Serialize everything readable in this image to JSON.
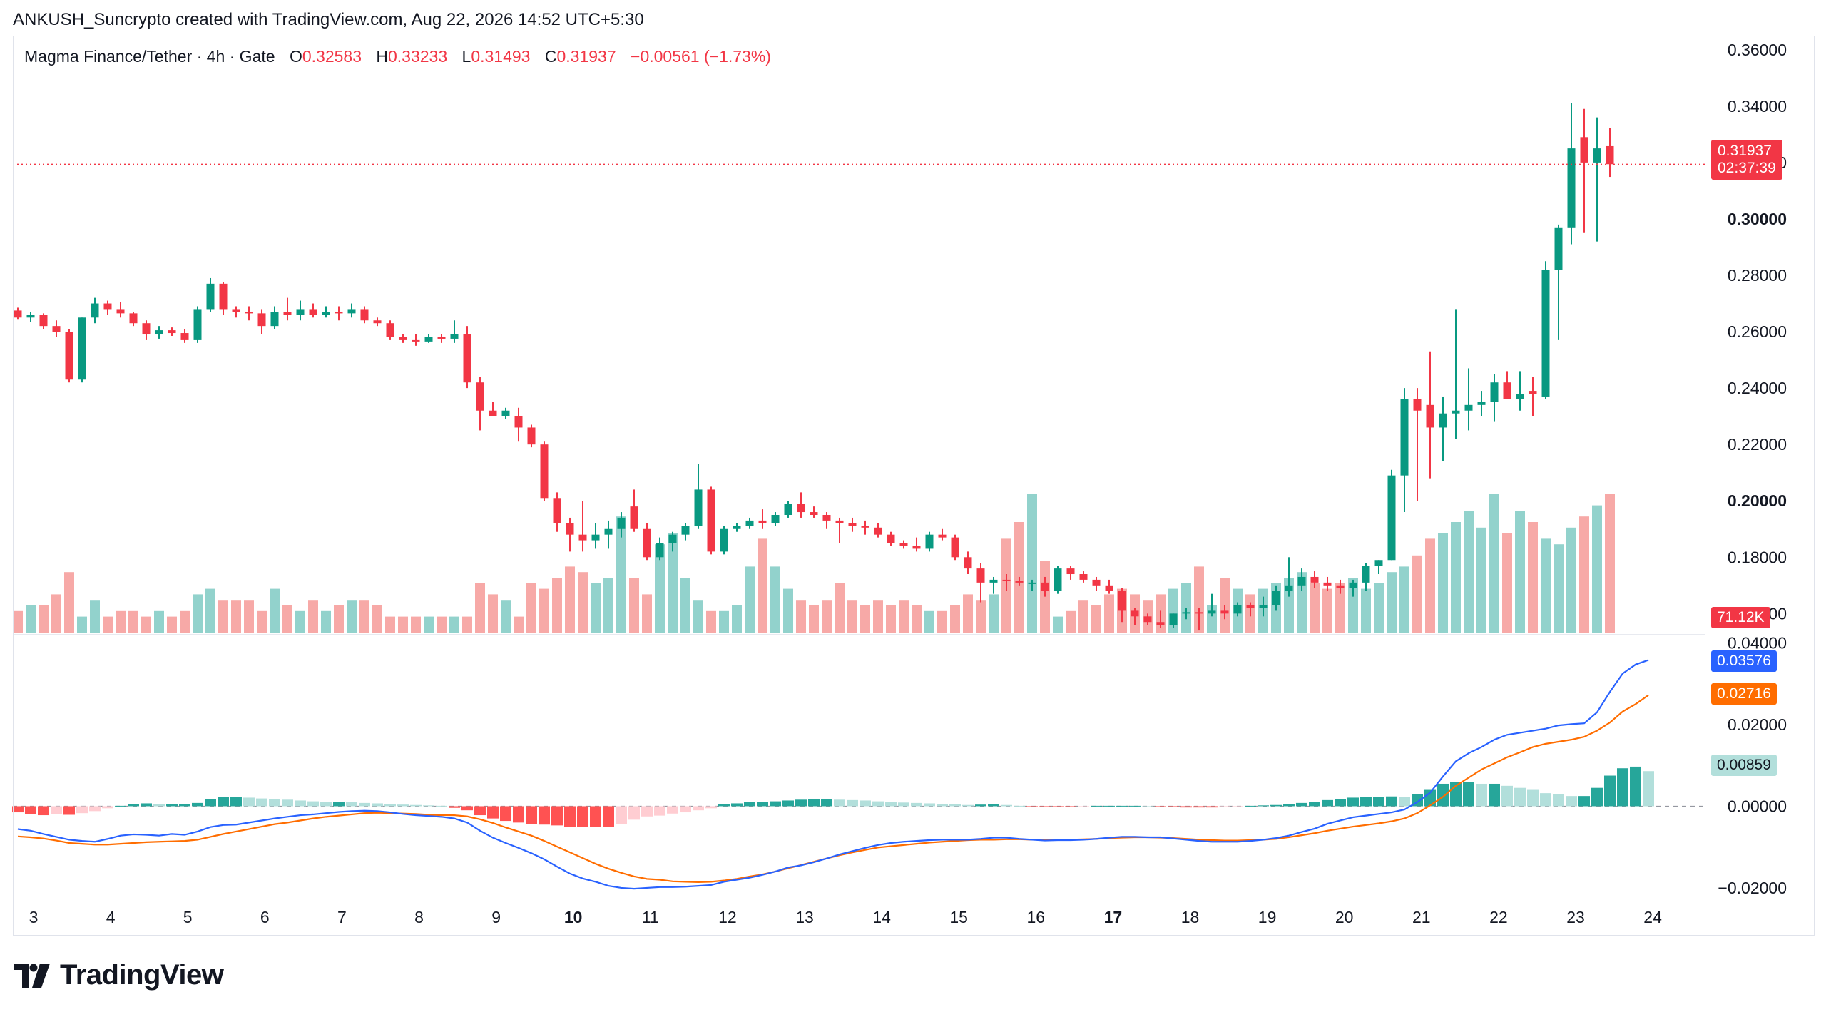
{
  "header": {
    "text": "ANKUSH_Suncrypto created with TradingView.com, Aug 22, 2026 14:52 UTC+5:30"
  },
  "legend": {
    "symbol": "Magma Finance/Tether · 4h · Gate",
    "o_label": "O",
    "o": "0.32583",
    "h_label": "H",
    "h": "0.33233",
    "l_label": "L",
    "l": "0.31493",
    "c_label": "C",
    "c": "0.31937",
    "change": "−0.00561 (−1.73%)"
  },
  "tags": {
    "last_price": "0.31937",
    "countdown": "02:37:39",
    "volume": "71.12K",
    "macd": "0.03576",
    "signal": "0.02716",
    "histogram": "0.00859"
  },
  "colors": {
    "up": "#089981",
    "down": "#f23645",
    "vol_up": "#92d2cc",
    "vol_down": "#f7a9a7",
    "macd_line": "#2962ff",
    "signal_line": "#ff6d00",
    "hist_up_strong": "#26a69a",
    "hist_up_weak": "#b2dfdb",
    "hist_down_strong": "#ff5252",
    "hist_down_weak": "#ffcdd2"
  },
  "logo": {
    "text": "TradingView",
    "icon": "tradingview-logo-icon"
  },
  "chart_data": {
    "type": "candlestick",
    "symbol": "Magma Finance/Tether",
    "interval": "4h",
    "exchange": "Gate",
    "price_axis": {
      "ticks": [
        "0.36000",
        "0.34000",
        "0.32000",
        "0.30000",
        "0.28000",
        "0.26000",
        "0.24000",
        "0.22000",
        "0.20000",
        "0.18000",
        "0.16000"
      ],
      "bold": [
        "0.30000",
        "0.20000"
      ],
      "ylim": [
        0.1525,
        0.365
      ]
    },
    "macd_axis": {
      "ticks": [
        "0.04000",
        "0.02000",
        "0.00000",
        "−0.02000"
      ],
      "ylim": [
        -0.0235,
        0.042
      ]
    },
    "x_axis": {
      "labels": [
        "3",
        "4",
        "5",
        "6",
        "7",
        "8",
        "9",
        "10",
        "11",
        "12",
        "13",
        "14",
        "15",
        "16",
        "17",
        "18",
        "19",
        "20",
        "21",
        "22",
        "23",
        "24"
      ],
      "bold": [
        "10",
        "17"
      ]
    },
    "candles": [
      [
        0.2675,
        0.2685,
        0.2645,
        0.265
      ],
      [
        0.265,
        0.267,
        0.2635,
        0.266
      ],
      [
        0.266,
        0.2665,
        0.261,
        0.262
      ],
      [
        0.262,
        0.264,
        0.258,
        0.26
      ],
      [
        0.26,
        0.261,
        0.242,
        0.243
      ],
      [
        0.243,
        0.265,
        0.242,
        0.265
      ],
      [
        0.265,
        0.272,
        0.263,
        0.27
      ],
      [
        0.27,
        0.271,
        0.266,
        0.268
      ],
      [
        0.268,
        0.2705,
        0.265,
        0.2665
      ],
      [
        0.2665,
        0.267,
        0.262,
        0.263
      ],
      [
        0.263,
        0.264,
        0.257,
        0.259
      ],
      [
        0.259,
        0.262,
        0.2575,
        0.2605
      ],
      [
        0.2605,
        0.2615,
        0.2585,
        0.2595
      ],
      [
        0.2595,
        0.261,
        0.256,
        0.257
      ],
      [
        0.257,
        0.269,
        0.256,
        0.268
      ],
      [
        0.268,
        0.279,
        0.267,
        0.277
      ],
      [
        0.277,
        0.2775,
        0.266,
        0.268
      ],
      [
        0.268,
        0.269,
        0.265,
        0.267
      ],
      [
        0.267,
        0.269,
        0.264,
        0.2665
      ],
      [
        0.2665,
        0.268,
        0.259,
        0.262
      ],
      [
        0.262,
        0.269,
        0.261,
        0.267
      ],
      [
        0.267,
        0.272,
        0.264,
        0.266
      ],
      [
        0.266,
        0.271,
        0.264,
        0.268
      ],
      [
        0.268,
        0.27,
        0.265,
        0.266
      ],
      [
        0.266,
        0.269,
        0.265,
        0.267
      ],
      [
        0.267,
        0.269,
        0.264,
        0.2665
      ],
      [
        0.2665,
        0.27,
        0.265,
        0.268
      ],
      [
        0.268,
        0.269,
        0.263,
        0.264
      ],
      [
        0.264,
        0.265,
        0.262,
        0.263
      ],
      [
        0.263,
        0.264,
        0.257,
        0.258
      ],
      [
        0.258,
        0.259,
        0.256,
        0.257
      ],
      [
        0.257,
        0.259,
        0.255,
        0.2565
      ],
      [
        0.2565,
        0.259,
        0.256,
        0.258
      ],
      [
        0.258,
        0.259,
        0.256,
        0.2575
      ],
      [
        0.2575,
        0.264,
        0.256,
        0.259
      ],
      [
        0.259,
        0.262,
        0.24,
        0.242
      ],
      [
        0.242,
        0.244,
        0.225,
        0.232
      ],
      [
        0.232,
        0.235,
        0.23,
        0.23
      ],
      [
        0.23,
        0.233,
        0.229,
        0.232
      ],
      [
        0.23,
        0.233,
        0.221,
        0.226
      ],
      [
        0.226,
        0.227,
        0.219,
        0.22
      ],
      [
        0.22,
        0.221,
        0.2,
        0.201
      ],
      [
        0.201,
        0.203,
        0.189,
        0.192
      ],
      [
        0.192,
        0.194,
        0.182,
        0.188
      ],
      [
        0.188,
        0.2,
        0.182,
        0.186
      ],
      [
        0.186,
        0.192,
        0.183,
        0.188
      ],
      [
        0.188,
        0.193,
        0.183,
        0.19
      ],
      [
        0.19,
        0.196,
        0.187,
        0.194
      ],
      [
        0.198,
        0.204,
        0.189,
        0.19
      ],
      [
        0.19,
        0.192,
        0.179,
        0.18
      ],
      [
        0.18,
        0.187,
        0.179,
        0.185
      ],
      [
        0.185,
        0.189,
        0.182,
        0.188
      ],
      [
        0.188,
        0.192,
        0.186,
        0.191
      ],
      [
        0.191,
        0.213,
        0.19,
        0.204
      ],
      [
        0.204,
        0.205,
        0.181,
        0.182
      ],
      [
        0.182,
        0.191,
        0.181,
        0.19
      ],
      [
        0.19,
        0.192,
        0.189,
        0.191
      ],
      [
        0.191,
        0.194,
        0.19,
        0.193
      ],
      [
        0.193,
        0.197,
        0.19,
        0.192
      ],
      [
        0.192,
        0.196,
        0.191,
        0.195
      ],
      [
        0.195,
        0.2,
        0.194,
        0.199
      ],
      [
        0.199,
        0.203,
        0.194,
        0.196
      ],
      [
        0.196,
        0.198,
        0.194,
        0.195
      ],
      [
        0.195,
        0.196,
        0.19,
        0.193
      ],
      [
        0.193,
        0.194,
        0.185,
        0.192
      ],
      [
        0.192,
        0.194,
        0.189,
        0.191
      ],
      [
        0.191,
        0.193,
        0.188,
        0.1905
      ],
      [
        0.1905,
        0.192,
        0.187,
        0.188
      ],
      [
        0.188,
        0.189,
        0.184,
        0.185
      ],
      [
        0.185,
        0.186,
        0.183,
        0.184
      ],
      [
        0.184,
        0.187,
        0.182,
        0.183
      ],
      [
        0.183,
        0.189,
        0.182,
        0.188
      ],
      [
        0.188,
        0.19,
        0.186,
        0.187
      ],
      [
        0.187,
        0.188,
        0.179,
        0.18
      ],
      [
        0.18,
        0.182,
        0.174,
        0.176
      ],
      [
        0.176,
        0.178,
        0.164,
        0.171
      ],
      [
        0.171,
        0.173,
        0.167,
        0.172
      ],
      [
        0.172,
        0.174,
        0.168,
        0.1715
      ],
      [
        0.1715,
        0.173,
        0.17,
        0.171
      ],
      [
        0.171,
        0.172,
        0.168,
        0.171
      ],
      [
        0.171,
        0.173,
        0.166,
        0.168
      ],
      [
        0.168,
        0.177,
        0.167,
        0.176
      ],
      [
        0.176,
        0.177,
        0.172,
        0.174
      ],
      [
        0.174,
        0.175,
        0.171,
        0.172
      ],
      [
        0.172,
        0.173,
        0.168,
        0.17
      ],
      [
        0.17,
        0.172,
        0.167,
        0.168
      ],
      [
        0.168,
        0.169,
        0.157,
        0.161
      ],
      [
        0.161,
        0.162,
        0.156,
        0.159
      ],
      [
        0.159,
        0.16,
        0.156,
        0.157
      ],
      [
        0.157,
        0.161,
        0.155,
        0.156
      ],
      [
        0.156,
        0.16,
        0.155,
        0.16
      ],
      [
        0.16,
        0.162,
        0.158,
        0.1605
      ],
      [
        0.1605,
        0.162,
        0.154,
        0.16
      ],
      [
        0.16,
        0.167,
        0.159,
        0.161
      ],
      [
        0.161,
        0.163,
        0.158,
        0.16
      ],
      [
        0.16,
        0.164,
        0.159,
        0.163
      ],
      [
        0.163,
        0.164,
        0.159,
        0.162
      ],
      [
        0.162,
        0.166,
        0.159,
        0.163
      ],
      [
        0.163,
        0.17,
        0.161,
        0.168
      ],
      [
        0.168,
        0.18,
        0.166,
        0.17
      ],
      [
        0.17,
        0.176,
        0.168,
        0.173
      ],
      [
        0.173,
        0.175,
        0.169,
        0.171
      ],
      [
        0.171,
        0.173,
        0.168,
        0.17
      ],
      [
        0.17,
        0.172,
        0.167,
        0.169
      ],
      [
        0.169,
        0.172,
        0.166,
        0.171
      ],
      [
        0.171,
        0.178,
        0.168,
        0.177
      ],
      [
        0.177,
        0.179,
        0.174,
        0.179
      ],
      [
        0.179,
        0.211,
        0.179,
        0.209
      ],
      [
        0.209,
        0.24,
        0.196,
        0.236
      ],
      [
        0.236,
        0.24,
        0.2,
        0.232
      ],
      [
        0.234,
        0.253,
        0.208,
        0.226
      ],
      [
        0.226,
        0.237,
        0.214,
        0.231
      ],
      [
        0.231,
        0.268,
        0.222,
        0.232
      ],
      [
        0.232,
        0.247,
        0.225,
        0.234
      ],
      [
        0.234,
        0.239,
        0.23,
        0.235
      ],
      [
        0.235,
        0.245,
        0.228,
        0.242
      ],
      [
        0.242,
        0.246,
        0.236,
        0.236
      ],
      [
        0.236,
        0.246,
        0.232,
        0.238
      ],
      [
        0.239,
        0.244,
        0.23,
        0.238
      ],
      [
        0.237,
        0.285,
        0.236,
        0.282
      ],
      [
        0.282,
        0.298,
        0.257,
        0.297
      ],
      [
        0.297,
        0.341,
        0.291,
        0.325
      ],
      [
        0.329,
        0.339,
        0.295,
        0.32
      ],
      [
        0.32,
        0.336,
        0.292,
        0.325
      ],
      [
        0.3258,
        0.3323,
        0.3149,
        0.3194
      ]
    ],
    "volume": [
      4,
      5,
      5,
      7,
      11,
      3,
      6,
      3,
      4,
      4,
      3,
      4,
      3,
      4,
      7,
      8,
      6,
      6,
      6,
      4,
      8,
      5,
      4,
      6,
      4,
      5,
      6,
      6,
      5,
      3,
      3,
      3,
      3,
      3,
      3,
      3,
      9,
      7,
      6,
      3,
      9,
      8,
      10,
      12,
      11,
      9,
      10,
      21,
      10,
      7,
      16,
      18,
      10,
      6,
      4,
      4,
      5,
      12,
      17,
      12,
      8,
      6,
      5,
      6,
      9,
      6,
      5,
      6,
      5,
      6,
      5,
      4,
      4,
      5,
      7,
      6,
      7,
      17,
      20,
      25,
      13,
      3,
      4,
      6,
      5,
      7,
      8,
      7,
      6,
      7,
      8,
      9,
      12,
      5,
      10,
      8,
      7,
      8,
      9,
      10,
      11,
      9,
      8,
      9,
      10,
      8,
      9,
      11,
      12,
      14,
      17,
      18,
      20,
      22,
      19,
      25,
      18,
      22,
      20,
      17,
      16,
      19,
      21,
      23,
      25,
      26,
      28,
      27
    ],
    "volume_bars_note": "see HTML",
    "macd": [
      -0.0056,
      -0.006,
      -0.0068,
      -0.0075,
      -0.0082,
      -0.0085,
      -0.0087,
      -0.008,
      -0.0072,
      -0.0069,
      -0.007,
      -0.0072,
      -0.0068,
      -0.007,
      -0.0062,
      -0.0051,
      -0.0046,
      -0.0045,
      -0.004,
      -0.0035,
      -0.003,
      -0.0026,
      -0.0022,
      -0.002,
      -0.0017,
      -0.0014,
      -0.0012,
      -0.0011,
      -0.0012,
      -0.0015,
      -0.0019,
      -0.0022,
      -0.0024,
      -0.0026,
      -0.003,
      -0.004,
      -0.006,
      -0.0077,
      -0.009,
      -0.0102,
      -0.0115,
      -0.013,
      -0.0148,
      -0.0165,
      -0.0177,
      -0.0185,
      -0.0195,
      -0.02,
      -0.0202,
      -0.02,
      -0.0198,
      -0.0198,
      -0.0197,
      -0.0195,
      -0.0193,
      -0.0185,
      -0.018,
      -0.0175,
      -0.0168,
      -0.016,
      -0.015,
      -0.0145,
      -0.0137,
      -0.0128,
      -0.0118,
      -0.011,
      -0.0102,
      -0.0095,
      -0.009,
      -0.0087,
      -0.0085,
      -0.0083,
      -0.0082,
      -0.0082,
      -0.0082,
      -0.008,
      -0.0077,
      -0.0077,
      -0.008,
      -0.0082,
      -0.0084,
      -0.0083,
      -0.0083,
      -0.0082,
      -0.008,
      -0.0077,
      -0.0075,
      -0.0075,
      -0.0076,
      -0.0076,
      -0.0079,
      -0.0082,
      -0.0085,
      -0.0087,
      -0.0087,
      -0.0087,
      -0.0085,
      -0.0082,
      -0.0078,
      -0.0072,
      -0.0063,
      -0.0055,
      -0.0043,
      -0.0035,
      -0.0027,
      -0.0023,
      -0.0019,
      -0.0015,
      -0.0008,
      0.001,
      0.0033,
      0.0073,
      0.011,
      0.013,
      0.0145,
      0.0163,
      0.0175,
      0.018,
      0.0185,
      0.019,
      0.0198,
      0.0201,
      0.0203,
      0.023,
      0.028,
      0.0325,
      0.0347,
      0.0358
    ],
    "signal": [
      -0.0074,
      -0.0076,
      -0.0079,
      -0.0084,
      -0.009,
      -0.0092,
      -0.0094,
      -0.0094,
      -0.0092,
      -0.009,
      -0.0088,
      -0.0087,
      -0.0086,
      -0.0085,
      -0.0082,
      -0.0075,
      -0.0068,
      -0.0062,
      -0.0056,
      -0.005,
      -0.0044,
      -0.004,
      -0.0035,
      -0.003,
      -0.0026,
      -0.0023,
      -0.002,
      -0.0017,
      -0.0016,
      -0.0017,
      -0.0018,
      -0.0019,
      -0.0021,
      -0.0022,
      -0.0022,
      -0.0025,
      -0.0032,
      -0.0041,
      -0.0052,
      -0.0062,
      -0.0072,
      -0.0085,
      -0.0099,
      -0.0113,
      -0.0127,
      -0.0141,
      -0.0153,
      -0.0163,
      -0.0172,
      -0.0178,
      -0.018,
      -0.0184,
      -0.0185,
      -0.0186,
      -0.0185,
      -0.0182,
      -0.0178,
      -0.0172,
      -0.0167,
      -0.016,
      -0.0152,
      -0.0144,
      -0.0136,
      -0.0128,
      -0.012,
      -0.0113,
      -0.0107,
      -0.0101,
      -0.0098,
      -0.0095,
      -0.0092,
      -0.0089,
      -0.0087,
      -0.0085,
      -0.0083,
      -0.0082,
      -0.0082,
      -0.0081,
      -0.0081,
      -0.0082,
      -0.0082,
      -0.0082,
      -0.0082,
      -0.0081,
      -0.008,
      -0.0078,
      -0.0077,
      -0.0076,
      -0.0076,
      -0.0077,
      -0.0078,
      -0.008,
      -0.0082,
      -0.0083,
      -0.0084,
      -0.0084,
      -0.0083,
      -0.0082,
      -0.008,
      -0.0076,
      -0.0071,
      -0.0066,
      -0.006,
      -0.0055,
      -0.005,
      -0.0046,
      -0.0042,
      -0.0037,
      -0.003,
      -0.0017,
      0.0002,
      0.0023,
      0.005,
      0.007,
      0.009,
      0.0105,
      0.012,
      0.0132,
      0.0145,
      0.0153,
      0.0158,
      0.0163,
      0.017,
      0.0185,
      0.0205,
      0.0232,
      0.025,
      0.0272
    ],
    "histogram": [
      -0.0015,
      -0.0019,
      -0.0022,
      -0.002,
      -0.0021,
      -0.0017,
      -0.0012,
      -0.0005,
      0.0001,
      0.0005,
      0.0007,
      0.0006,
      0.0006,
      0.0006,
      0.0008,
      0.0017,
      0.0022,
      0.0023,
      0.0021,
      0.0019,
      0.0018,
      0.0016,
      0.0014,
      0.0012,
      0.0011,
      0.0011,
      0.001,
      0.0008,
      0.0007,
      0.0006,
      0.0004,
      0.0003,
      0.0002,
      0.0001,
      -0.0004,
      -0.001,
      -0.0022,
      -0.003,
      -0.0036,
      -0.004,
      -0.0043,
      -0.0045,
      -0.0047,
      -0.005,
      -0.005,
      -0.005,
      -0.005,
      -0.0044,
      -0.0033,
      -0.0025,
      -0.0023,
      -0.0018,
      -0.0015,
      -0.001,
      -0.0005,
      0.0005,
      0.0007,
      0.001,
      0.0011,
      0.0012,
      0.0014,
      0.0016,
      0.0017,
      0.0017,
      0.0016,
      0.0015,
      0.0014,
      0.0012,
      0.0011,
      0.0009,
      0.0008,
      0.0007,
      0.0006,
      0.0005,
      0.0003,
      0.0004,
      0.0005,
      0.0003,
      0.0001,
      -0.0001,
      -0.0002,
      -0.0002,
      -0.0002,
      -0.0001,
      0.0001,
      0.0001,
      0.0001,
      0.0001,
      0.0,
      -0.0001,
      -0.0002,
      -0.0003,
      -0.0003,
      -0.0003,
      -0.0002,
      -0.0001,
      0.0001,
      0.0002,
      0.0003,
      0.0005,
      0.0008,
      0.0011,
      0.0015,
      0.0018,
      0.0021,
      0.0023,
      0.0023,
      0.0024,
      0.0023,
      0.003,
      0.004,
      0.0055,
      0.006,
      0.006,
      0.0055,
      0.0055,
      0.005,
      0.0045,
      0.004,
      0.0032,
      0.003,
      0.0025,
      0.0025,
      0.0045,
      0.0075,
      0.0093,
      0.0097,
      0.0086
    ]
  }
}
